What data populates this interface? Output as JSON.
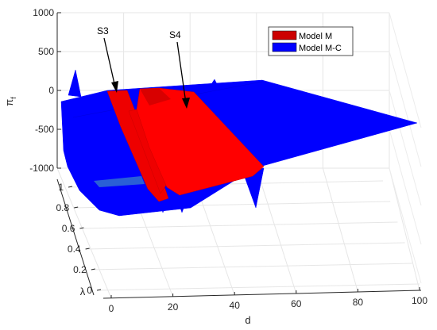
{
  "chart_data": {
    "type": "surface",
    "xlabel": "d",
    "ylabel": "λ",
    "zlabel": "π_f",
    "zlabel_main": "π",
    "zlabel_sub": "f",
    "xlim": [
      0,
      100
    ],
    "ylim": [
      0,
      1
    ],
    "zlim": [
      -1000,
      1000
    ],
    "xticks": [
      "0",
      "20",
      "40",
      "60",
      "80",
      "100"
    ],
    "yticks": [
      "0",
      "0.2",
      "0.4",
      "0.6",
      "0.8",
      "1"
    ],
    "zticks": [
      "1000",
      "500",
      "0",
      "-500",
      "-1000"
    ],
    "grid": true,
    "legend_position": "top-right",
    "series": [
      {
        "name": "Model M",
        "color": "#cc0000"
      },
      {
        "name": "Model M-C",
        "color": "#0000ff"
      }
    ],
    "annotations": [
      {
        "text": "S3"
      },
      {
        "text": "S4"
      }
    ]
  }
}
